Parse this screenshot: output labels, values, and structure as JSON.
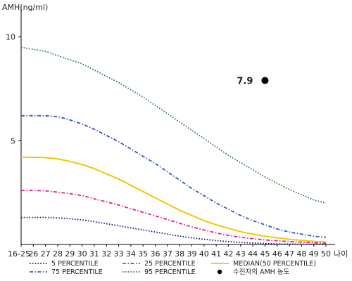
{
  "chart_data": {
    "type": "line",
    "ylabel": "AMH(ng/ml)",
    "xlabel": "나이",
    "categories": [
      "16-25",
      "26",
      "27",
      "28",
      "29",
      "30",
      "31",
      "32",
      "33",
      "34",
      "35",
      "36",
      "37",
      "38",
      "39",
      "40",
      "41",
      "42",
      "43",
      "44",
      "45",
      "46",
      "47",
      "48",
      "49",
      "50"
    ],
    "yticks": [
      5,
      10
    ],
    "ylim": [
      0,
      11
    ],
    "series": [
      {
        "name": "95 PERCENTILE",
        "color": "#2e7d32",
        "dash": "dotted",
        "values": [
          9.5,
          9.4,
          9.3,
          9.1,
          8.9,
          8.7,
          8.4,
          8.1,
          7.8,
          7.45,
          7.1,
          6.7,
          6.3,
          5.9,
          5.5,
          5.1,
          4.7,
          4.3,
          3.95,
          3.6,
          3.25,
          2.95,
          2.65,
          2.4,
          2.15,
          2.0
        ]
      },
      {
        "name": "75 PERCENTILE",
        "color": "#3355cc",
        "dash": "dashdot",
        "values": [
          6.2,
          6.2,
          6.2,
          6.15,
          6.0,
          5.8,
          5.55,
          5.25,
          4.95,
          4.6,
          4.25,
          3.9,
          3.5,
          3.1,
          2.7,
          2.35,
          2.0,
          1.7,
          1.4,
          1.15,
          0.95,
          0.75,
          0.6,
          0.5,
          0.4,
          0.35
        ]
      },
      {
        "name": "MEDIAN(50 PERCENTILE)",
        "color": "#f0c800",
        "dash": "solid",
        "values": [
          4.2,
          4.2,
          4.18,
          4.12,
          4.0,
          3.85,
          3.65,
          3.4,
          3.15,
          2.85,
          2.55,
          2.25,
          1.95,
          1.65,
          1.4,
          1.15,
          0.95,
          0.78,
          0.62,
          0.5,
          0.4,
          0.32,
          0.25,
          0.2,
          0.15,
          0.12
        ]
      },
      {
        "name": "25 PERCENTILE",
        "color": "#e0208a",
        "dash": "dashdot",
        "values": [
          2.6,
          2.6,
          2.58,
          2.52,
          2.45,
          2.35,
          2.2,
          2.05,
          1.9,
          1.72,
          1.55,
          1.38,
          1.2,
          1.02,
          0.85,
          0.7,
          0.56,
          0.44,
          0.35,
          0.28,
          0.22,
          0.18,
          0.14,
          0.11,
          0.08,
          0.06
        ]
      },
      {
        "name": "5 PERCENTILE",
        "color": "#1a1a8a",
        "dash": "dotted",
        "values": [
          1.3,
          1.3,
          1.3,
          1.28,
          1.24,
          1.18,
          1.1,
          1.0,
          0.9,
          0.8,
          0.7,
          0.6,
          0.5,
          0.4,
          0.32,
          0.25,
          0.19,
          0.14,
          0.1,
          0.07,
          0.05,
          0.03,
          0.02,
          0.015,
          0.01,
          0.01
        ]
      }
    ],
    "patient_point": {
      "label": "수진자의 AMH 농도",
      "x": "45",
      "y": 7.9,
      "value_label": "7.9"
    },
    "legend": {
      "placement": "bottom",
      "order": [
        "5 PERCENTILE",
        "25 PERCENTILE",
        "MEDIAN(50 PERCENTILE)",
        "75 PERCENTILE",
        "95 PERCENTILE",
        "수진자의 AMH 농도"
      ]
    },
    "grid": false
  }
}
